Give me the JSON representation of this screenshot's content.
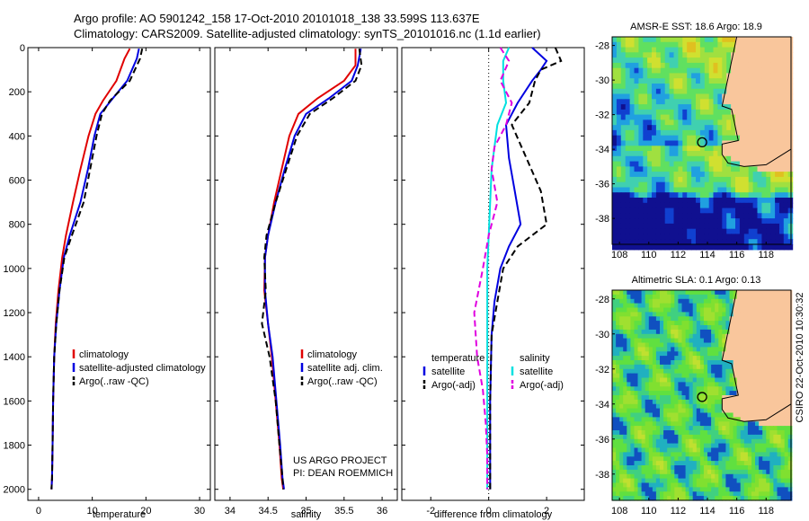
{
  "header": {
    "line1": "Argo profile: AO 5901242_158 17-Oct-2010 20101018_138 33.599S 113.637E",
    "line2": "Climatology: CARS2009. Satellite-adjusted climatology: synTS_20101016.nc (1.1d earlier)"
  },
  "side_label": "CSIRO 22-Oct-2010 10:30:32",
  "colors": {
    "climatology": "#e00000",
    "satellite": "#0000e0",
    "argo": "#000000",
    "sal_satellite": "#00e0e0",
    "sal_argo": "#e000e0",
    "land": "#f9c69c"
  },
  "chart_data": [
    {
      "type": "line",
      "xlabel": "temperature",
      "xlim": [
        -2,
        32
      ],
      "ylim": [
        2050,
        0
      ],
      "xticks": [
        0,
        10,
        20,
        30
      ],
      "yticks": [
        0,
        200,
        400,
        600,
        800,
        1000,
        1200,
        1400,
        1600,
        1800,
        2000
      ],
      "legend": [
        "climatology",
        "satellite-adjusted climatology",
        "Argo(..raw -QC)"
      ],
      "series": [
        {
          "name": "climatology",
          "style": "solid",
          "color": "#e00000",
          "x": [
            17.0,
            16.0,
            14.5,
            12.0,
            10.6,
            9.3,
            7.8,
            6.4,
            5.1,
            4.4,
            3.7,
            3.2,
            2.9,
            2.7,
            2.6,
            2.5,
            2.4
          ],
          "y": [
            5,
            50,
            150,
            240,
            300,
            400,
            550,
            700,
            850,
            950,
            1100,
            1250,
            1400,
            1600,
            1800,
            1950,
            2000
          ]
        },
        {
          "name": "satellite-adjusted climatology",
          "style": "solid",
          "color": "#0000e0",
          "x": [
            18.7,
            18.3,
            16.5,
            13.5,
            11.5,
            10.4,
            9.2,
            7.8,
            5.8,
            4.7,
            3.9,
            3.3,
            2.9,
            2.7,
            2.6,
            2.5,
            2.4
          ],
          "y": [
            5,
            50,
            150,
            240,
            300,
            400,
            550,
            700,
            850,
            950,
            1100,
            1250,
            1400,
            1600,
            1800,
            1950,
            2000
          ]
        },
        {
          "name": "Argo(..raw -QC)",
          "style": "dashed",
          "color": "#000000",
          "x": [
            19.3,
            18.9,
            17.0,
            13.3,
            11.8,
            10.8,
            9.6,
            8.4,
            6.2,
            4.8,
            3.9,
            3.3,
            2.9,
            2.7,
            2.6,
            2.5,
            2.4
          ],
          "y": [
            5,
            50,
            150,
            240,
            300,
            400,
            550,
            700,
            850,
            950,
            1100,
            1250,
            1400,
            1600,
            1800,
            1950,
            2000
          ]
        }
      ]
    },
    {
      "type": "line",
      "xlabel": "salinity",
      "xlim": [
        33.8,
        36.2
      ],
      "ylim": [
        2050,
        0
      ],
      "xticks": [
        34,
        34.5,
        35,
        35.5,
        36
      ],
      "legend": [
        "climatology",
        "satellite adj. clim.",
        "Argo(..raw -QC)"
      ],
      "annotation": [
        "US ARGO PROJECT",
        "PI: DEAN ROEMMICH"
      ],
      "series": [
        {
          "name": "climatology",
          "style": "solid",
          "color": "#e00000",
          "x": [
            35.65,
            35.65,
            35.5,
            35.15,
            34.9,
            34.78,
            34.68,
            34.58,
            34.5,
            34.46,
            34.45,
            34.5,
            34.55,
            34.6,
            34.65,
            34.68,
            34.7
          ],
          "y": [
            5,
            80,
            150,
            230,
            300,
            400,
            550,
            700,
            850,
            950,
            1100,
            1250,
            1400,
            1600,
            1800,
            1950,
            2000
          ]
        },
        {
          "name": "satellite adj. clim.",
          "style": "solid",
          "color": "#0000e0",
          "x": [
            35.72,
            35.68,
            35.6,
            35.3,
            35.0,
            34.85,
            34.72,
            34.6,
            34.5,
            34.46,
            34.46,
            34.5,
            34.56,
            34.61,
            34.66,
            34.69,
            34.71
          ],
          "y": [
            5,
            80,
            150,
            230,
            300,
            400,
            550,
            700,
            850,
            950,
            1100,
            1250,
            1400,
            1600,
            1800,
            1950,
            2000
          ]
        },
        {
          "name": "Argo(..raw -QC)",
          "style": "dashed",
          "color": "#000000",
          "x": [
            35.7,
            35.73,
            35.65,
            35.35,
            35.05,
            34.88,
            34.74,
            34.6,
            34.48,
            34.45,
            34.47,
            34.42,
            34.52,
            34.6,
            34.65,
            34.69,
            34.7
          ],
          "y": [
            5,
            80,
            150,
            230,
            300,
            400,
            550,
            700,
            850,
            950,
            1100,
            1250,
            1400,
            1600,
            1800,
            1950,
            2000
          ]
        }
      ]
    },
    {
      "type": "line",
      "xlabel": "difference from climatology",
      "xlim": [
        -3,
        3.3
      ],
      "ylim": [
        2050,
        0
      ],
      "xticks": [
        -2,
        0,
        2
      ],
      "legend_groups": [
        {
          "title": "temperature",
          "entries": [
            "satellite",
            "Argo(-adj)"
          ]
        },
        {
          "title": "salinity",
          "entries": [
            "satellite",
            "Argo(-adj)"
          ]
        }
      ],
      "series": [
        {
          "name": "temperature satellite",
          "style": "solid",
          "color": "#0000e0",
          "x": [
            1.5,
            2.0,
            1.8,
            1.5,
            1.0,
            0.6,
            0.7,
            0.9,
            1.1,
            0.7,
            0.4,
            0.2,
            0.1,
            0.05,
            0.05,
            0.05
          ],
          "y": [
            0,
            60,
            100,
            150,
            250,
            350,
            500,
            650,
            800,
            900,
            1000,
            1150,
            1300,
            1600,
            1800,
            2000
          ]
        },
        {
          "name": "temperature Argo(-adj)",
          "style": "dashed",
          "color": "#000000",
          "x": [
            2.3,
            2.5,
            1.8,
            1.6,
            1.4,
            0.8,
            1.3,
            1.8,
            2.0,
            1.0,
            0.5,
            0.3,
            0.1,
            0.05,
            0.05,
            0.05
          ],
          "y": [
            0,
            60,
            100,
            150,
            250,
            350,
            500,
            650,
            800,
            900,
            1000,
            1150,
            1300,
            1600,
            1800,
            2000
          ]
        },
        {
          "name": "salinity satellite",
          "style": "solid",
          "color": "#00e0e0",
          "x": [
            0.7,
            0.5,
            0.5,
            0.6,
            0.3,
            0.2,
            0.1,
            0.05,
            0.0,
            -0.05,
            -0.05,
            -0.05,
            -0.05,
            -0.05,
            -0.05,
            -0.05
          ],
          "y": [
            0,
            60,
            150,
            250,
            350,
            450,
            550,
            700,
            850,
            1000,
            1200,
            1400,
            1550,
            1700,
            1850,
            2000
          ]
        },
        {
          "name": "salinity Argo(-adj)",
          "style": "dashed",
          "color": "#e000e0",
          "x": [
            0.4,
            0.7,
            0.4,
            0.8,
            0.6,
            0.2,
            0.1,
            0.3,
            0.0,
            -0.2,
            -0.5,
            -0.4,
            -0.2,
            -0.1,
            -0.05,
            -0.05
          ],
          "y": [
            0,
            60,
            150,
            250,
            350,
            450,
            550,
            700,
            850,
            1000,
            1200,
            1400,
            1550,
            1700,
            1850,
            2000
          ]
        }
      ]
    },
    {
      "type": "heatmap",
      "title": "AMSR-E SST: 18.6 Argo: 18.9",
      "xlim": [
        107.5,
        119.7
      ],
      "ylim": [
        -39.5,
        -27.5
      ],
      "xticks": [
        108,
        110,
        112,
        114,
        116,
        118
      ],
      "yticks": [
        -28,
        -30,
        -32,
        -34,
        -36,
        -38
      ],
      "marker": {
        "lon": 113.637,
        "lat": -33.599
      }
    },
    {
      "type": "heatmap",
      "title": "Altimetric SLA: 0.1 Argo: 0.13",
      "xlim": [
        107.5,
        119.7
      ],
      "ylim": [
        -39.5,
        -27.5
      ],
      "xticks": [
        108,
        110,
        112,
        114,
        116,
        118
      ],
      "yticks": [
        -28,
        -30,
        -32,
        -34,
        -36,
        -38
      ],
      "marker": {
        "lon": 113.637,
        "lat": -33.599
      }
    }
  ]
}
